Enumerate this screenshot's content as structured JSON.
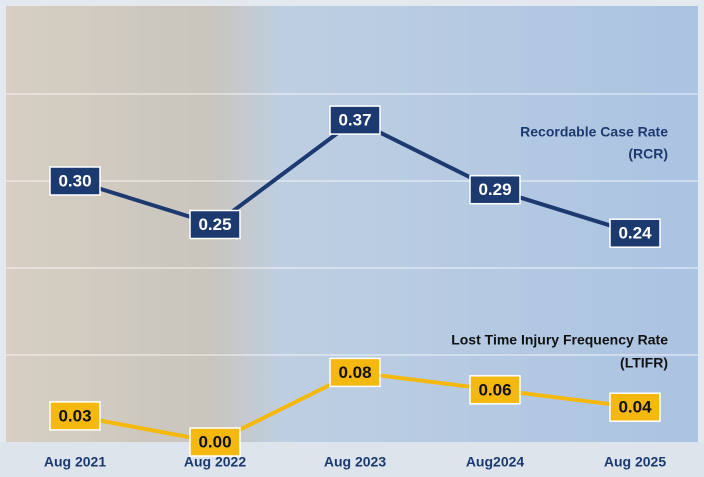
{
  "chart_data": {
    "type": "line",
    "categories": [
      "Aug 2021",
      "Aug 2022",
      "Aug 2023",
      "Aug2024",
      "Aug 2025"
    ],
    "ylim": [
      0,
      0.5
    ],
    "yticks": [
      0.1,
      0.2,
      0.3,
      0.4
    ],
    "grid": true,
    "series": [
      {
        "label": [
          "Recordable Case Rate",
          "(RCR)"
        ],
        "color": "#1c3a70",
        "label_color": "#1c3a70",
        "text_color": "#ffffff",
        "values": [
          0.3,
          0.25,
          0.37,
          0.29,
          0.24
        ],
        "value_labels": [
          "0.30",
          "0.25",
          "0.37",
          "0.29",
          "0.24"
        ]
      },
      {
        "label": [
          "Lost Time Injury Frequency Rate",
          "(LTIFR)"
        ],
        "color": "#f5b80f",
        "label_color": "#111111",
        "text_color": "#111111",
        "values": [
          0.03,
          0.0,
          0.08,
          0.06,
          0.04
        ],
        "value_labels": [
          "0.03",
          "0.00",
          "0.08",
          "0.06",
          "0.04"
        ]
      }
    ]
  }
}
